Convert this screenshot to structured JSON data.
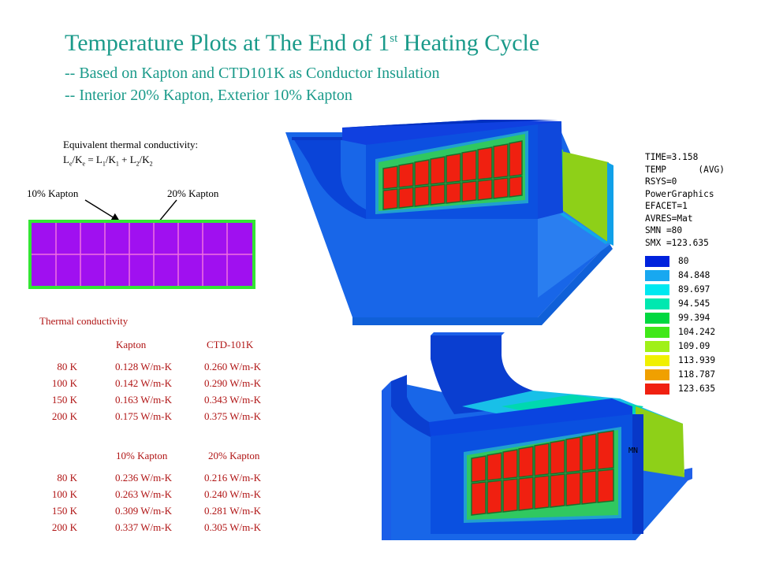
{
  "title": {
    "main": "Temperature Plots at The End of 1",
    "sup": "st",
    "rest": " Heating Cycle",
    "line2": "-- Based on Kapton and CTD101K as Conductor Insulation",
    "line3": "-- Interior 20% Kapton, Exterior 10% Kapton"
  },
  "equation": {
    "label": "Equivalent thermal conductivity:",
    "parts": [
      "L",
      "e",
      "/K",
      "e",
      " = L",
      "1",
      "/K",
      "1",
      " + L",
      "2",
      "/K",
      "2"
    ]
  },
  "diagram": {
    "left_label": "10% Kapton",
    "right_label": "20% Kapton",
    "colors": {
      "fill": "#a010f0",
      "border": "#33e633",
      "grid": "#f070e0"
    }
  },
  "table": {
    "heading": "Thermal  conductivity",
    "header1": [
      "Kapton",
      "CTD-101K"
    ],
    "rows1": [
      [
        "80 K",
        "0.128 W/m-K",
        "0.260 W/m-K"
      ],
      [
        "100 K",
        "0.142 W/m-K",
        "0.290 W/m-K"
      ],
      [
        "150 K",
        "0.163 W/m-K",
        "0.343 W/m-K"
      ],
      [
        "200 K",
        "0.175 W/m-K",
        "0.375 W/m-K"
      ]
    ],
    "header2": [
      "10% Kapton",
      "20% Kapton"
    ],
    "rows2": [
      [
        "80 K",
        "0.236 W/m-K",
        "0.216 W/m-K"
      ],
      [
        "100 K",
        "0.263 W/m-K",
        "0.240 W/m-K"
      ],
      [
        "150 K",
        "0.309 W/m-K",
        "0.281 W/m-K"
      ],
      [
        "200 K",
        "0.337 W/m-K",
        "0.305 W/m-K"
      ]
    ],
    "color": "#b01414"
  },
  "ansys_info": [
    "TIME=3.158",
    "TEMP      (AVG)",
    "RSYS=0",
    "PowerGraphics",
    "EFACET=1",
    "AVRES=Mat",
    "SMN =80",
    "SMX =123.635"
  ],
  "legend": [
    {
      "value": "80",
      "color": "#0022dd"
    },
    {
      "value": "84.848",
      "color": "#18a8f0"
    },
    {
      "value": "89.697",
      "color": "#00e8f0"
    },
    {
      "value": "94.545",
      "color": "#00e8b0"
    },
    {
      "value": "99.394",
      "color": "#00d840"
    },
    {
      "value": "104.242",
      "color": "#40e818"
    },
    {
      "value": "109.09",
      "color": "#a0f018"
    },
    {
      "value": "113.939",
      "color": "#f0f000"
    },
    {
      "value": "118.787",
      "color": "#f0a000"
    },
    {
      "value": "123.635",
      "color": "#f02010"
    }
  ],
  "mn_label": "MN"
}
